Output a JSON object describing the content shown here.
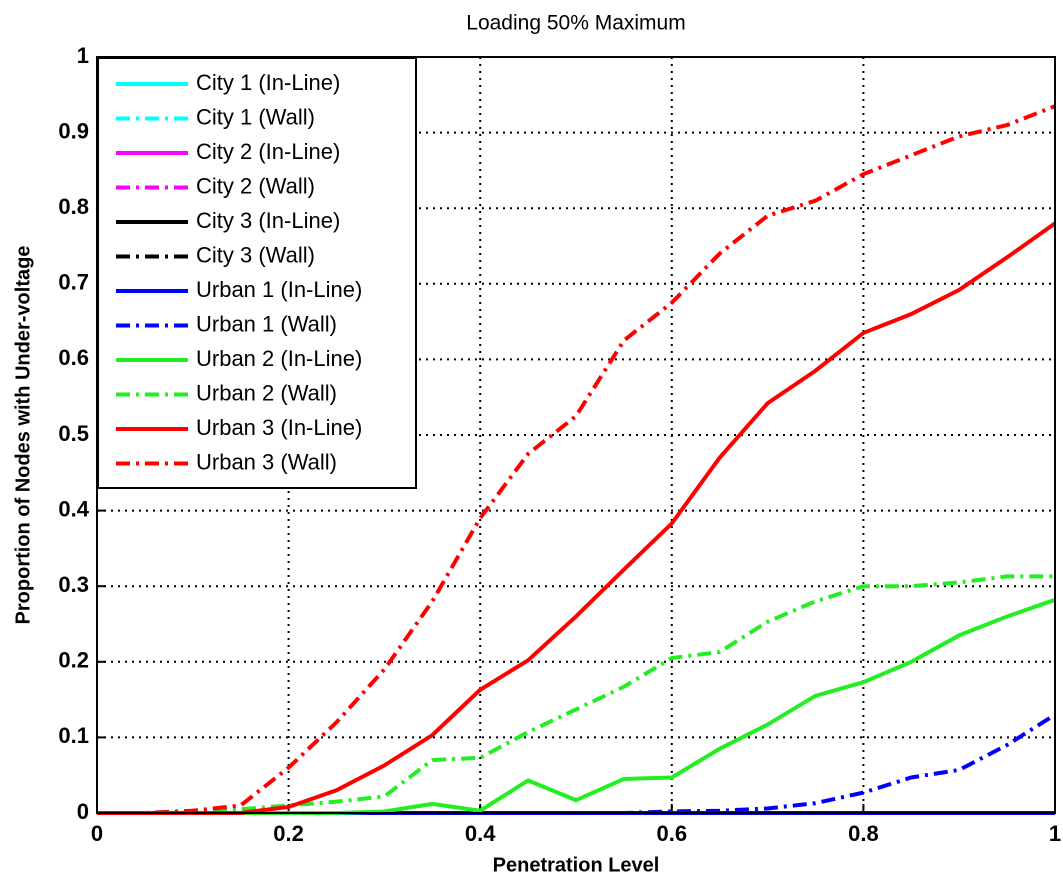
{
  "chart_data": {
    "type": "line",
    "title": "Loading 50% Maximum",
    "x_label": "Penetration Level",
    "y_label": "Proportion of Nodes with Under-voltage",
    "x": [
      0,
      0.05,
      0.1,
      0.15,
      0.2,
      0.25,
      0.3,
      0.35,
      0.4,
      0.45,
      0.5,
      0.55,
      0.6,
      0.65,
      0.7,
      0.75,
      0.8,
      0.85,
      0.9,
      0.95,
      1
    ],
    "xlim": [
      0,
      1
    ],
    "xticks": [
      0,
      0.2,
      0.4,
      0.6,
      0.8,
      1
    ],
    "ylim": [
      0,
      1
    ],
    "yticks": [
      0,
      0.1,
      0.2,
      0.3,
      0.4,
      0.5,
      0.6,
      0.7,
      0.8,
      0.9,
      1
    ],
    "grid": true,
    "legend": "upper left",
    "series": [
      {
        "name": "City 1 (In-Line)",
        "color": "#00ffff",
        "dash": "solid",
        "values": [
          0,
          0,
          0,
          0,
          0,
          0,
          0,
          0,
          0,
          0,
          0,
          0,
          0,
          0,
          0,
          0,
          0,
          0,
          0,
          0,
          0
        ]
      },
      {
        "name": "City 1 (Wall)",
        "color": "#00ffff",
        "dash": "dashdot",
        "values": [
          0,
          0,
          0,
          0,
          0,
          0,
          0,
          0,
          0,
          0,
          0,
          0,
          0,
          0,
          0,
          0,
          0,
          0,
          0,
          0,
          0
        ]
      },
      {
        "name": "City 2 (In-Line)",
        "color": "#ff00ff",
        "dash": "solid",
        "values": [
          0,
          0,
          0,
          0,
          0,
          0,
          0,
          0,
          0,
          0,
          0,
          0,
          0,
          0,
          0,
          0,
          0,
          0,
          0,
          0,
          0
        ]
      },
      {
        "name": "City 2 (Wall)",
        "color": "#ff00ff",
        "dash": "dashdot",
        "values": [
          0,
          0,
          0,
          0,
          0,
          0,
          0,
          0,
          0,
          0,
          0,
          0,
          0,
          0,
          0,
          0,
          0,
          0,
          0,
          0,
          0
        ]
      },
      {
        "name": "City 3 (In-Line)",
        "color": "#000000",
        "dash": "solid",
        "values": [
          0,
          0,
          0,
          0,
          0,
          0,
          0,
          0,
          0,
          0,
          0,
          0,
          0,
          0,
          0,
          0,
          0,
          0,
          0,
          0,
          0
        ]
      },
      {
        "name": "City 3 (Wall)",
        "color": "#000000",
        "dash": "dashdot",
        "values": [
          0,
          0,
          0,
          0,
          0,
          0,
          0,
          0,
          0,
          0,
          0,
          0,
          0,
          0,
          0,
          0,
          0,
          0,
          0,
          0,
          0
        ]
      },
      {
        "name": "Urban 1 (In-Line)",
        "color": "#0000ff",
        "dash": "solid",
        "values": [
          0,
          0,
          0,
          0,
          0,
          0,
          0,
          0,
          0,
          0,
          0,
          0,
          0,
          0,
          0,
          0,
          0,
          0,
          0,
          0,
          0
        ]
      },
      {
        "name": "Urban 1 (Wall)",
        "color": "#0000ff",
        "dash": "dashdot",
        "values": [
          0,
          0,
          0,
          0,
          0,
          0,
          0,
          0,
          0,
          0,
          0,
          0,
          0.002,
          0.003,
          0.006,
          0.013,
          0.027,
          0.047,
          0.057,
          0.09,
          0.13
        ]
      },
      {
        "name": "Urban 2 (In-Line)",
        "color": "#22ee22",
        "dash": "solid",
        "values": [
          0,
          0,
          0,
          0,
          0,
          0,
          0.002,
          0.012,
          0.003,
          0.043,
          0.017,
          0.045,
          0.047,
          0.085,
          0.117,
          0.155,
          0.173,
          0.2,
          0.235,
          0.26,
          0.282
        ]
      },
      {
        "name": "Urban 2 (Wall)",
        "color": "#22ee22",
        "dash": "dashdot",
        "values": [
          0,
          0,
          0.003,
          0.005,
          0.01,
          0.015,
          0.022,
          0.07,
          0.073,
          0.107,
          0.137,
          0.167,
          0.205,
          0.213,
          0.253,
          0.28,
          0.3,
          0.3,
          0.305,
          0.313,
          0.313
        ]
      },
      {
        "name": "Urban 3 (In-Line)",
        "color": "#ff0000",
        "dash": "solid",
        "values": [
          0,
          0,
          0,
          0,
          0.008,
          0.03,
          0.063,
          0.103,
          0.163,
          0.202,
          0.26,
          0.322,
          0.383,
          0.47,
          0.542,
          0.585,
          0.635,
          0.66,
          0.692,
          0.735,
          0.78
        ]
      },
      {
        "name": "Urban 3 (Wall)",
        "color": "#ff0000",
        "dash": "dashdot",
        "values": [
          0,
          0,
          0.003,
          0.01,
          0.06,
          0.12,
          0.19,
          0.28,
          0.39,
          0.475,
          0.525,
          0.625,
          0.675,
          0.74,
          0.79,
          0.81,
          0.845,
          0.87,
          0.895,
          0.91,
          0.935
        ]
      }
    ]
  }
}
